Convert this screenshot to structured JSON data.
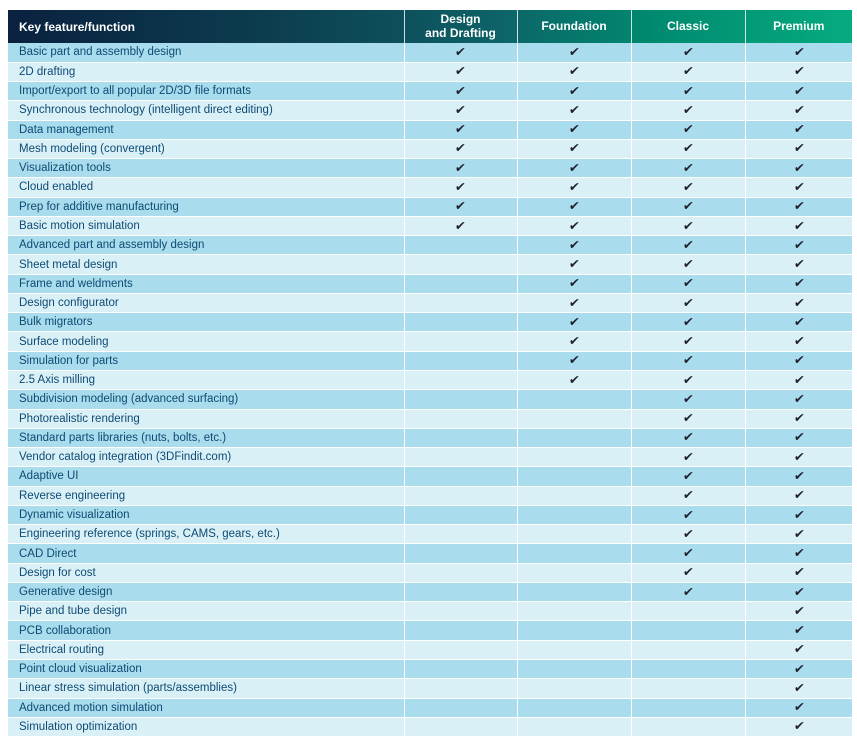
{
  "table": {
    "header": {
      "feature_label": "Key feature/function",
      "plans": [
        "Design\nand Drafting",
        "Foundation",
        "Classic",
        "Premium"
      ]
    },
    "check_glyph": "✔",
    "colors": {
      "header_gradient_left": "#0a2140",
      "header_gradient_mid": "#0d4f5b",
      "header_gradient_right": "#06ab80",
      "row_stripe_dark": "#a9dcec",
      "row_stripe_light": "#d9f0f7",
      "row_text": "#0e4a74",
      "header_text": "#ffffff",
      "check": "#20202e"
    },
    "rows": [
      {
        "feature": "Basic part and assembly design",
        "checks": [
          true,
          true,
          true,
          true
        ]
      },
      {
        "feature": "2D drafting",
        "checks": [
          true,
          true,
          true,
          true
        ]
      },
      {
        "feature": "Import/export to all popular 2D/3D  file formats",
        "checks": [
          true,
          true,
          true,
          true
        ]
      },
      {
        "feature": "Synchronous technology (intelligent direct editing)",
        "checks": [
          true,
          true,
          true,
          true
        ]
      },
      {
        "feature": "Data management",
        "checks": [
          true,
          true,
          true,
          true
        ]
      },
      {
        "feature": "Mesh modeling (convergent)",
        "checks": [
          true,
          true,
          true,
          true
        ]
      },
      {
        "feature": "Visualization tools",
        "checks": [
          true,
          true,
          true,
          true
        ]
      },
      {
        "feature": "Cloud enabled",
        "checks": [
          true,
          true,
          true,
          true
        ]
      },
      {
        "feature": "Prep for additive manufacturing",
        "checks": [
          true,
          true,
          true,
          true
        ]
      },
      {
        "feature": "Basic motion simulation",
        "checks": [
          true,
          true,
          true,
          true
        ]
      },
      {
        "feature": "Advanced part and assembly design",
        "checks": [
          false,
          true,
          true,
          true
        ]
      },
      {
        "feature": "Sheet metal design",
        "checks": [
          false,
          true,
          true,
          true
        ]
      },
      {
        "feature": "Frame and weldments",
        "checks": [
          false,
          true,
          true,
          true
        ]
      },
      {
        "feature": "Design configurator",
        "checks": [
          false,
          true,
          true,
          true
        ]
      },
      {
        "feature": "Bulk migrators",
        "checks": [
          false,
          true,
          true,
          true
        ]
      },
      {
        "feature": "Surface modeling",
        "checks": [
          false,
          true,
          true,
          true
        ]
      },
      {
        "feature": "Simulation for parts",
        "checks": [
          false,
          true,
          true,
          true
        ]
      },
      {
        "feature": "2.5 Axis milling",
        "checks": [
          false,
          true,
          true,
          true
        ]
      },
      {
        "feature": "Subdivision modeling (advanced surfacing)",
        "checks": [
          false,
          false,
          true,
          true
        ]
      },
      {
        "feature": "Photorealistic rendering",
        "checks": [
          false,
          false,
          true,
          true
        ]
      },
      {
        "feature": "Standard parts libraries (nuts, bolts, etc.)",
        "checks": [
          false,
          false,
          true,
          true
        ]
      },
      {
        "feature": "Vendor catalog integration (3DFindit.com)",
        "checks": [
          false,
          false,
          true,
          true
        ]
      },
      {
        "feature": "Adaptive UI",
        "checks": [
          false,
          false,
          true,
          true
        ]
      },
      {
        "feature": "Reverse engineering",
        "checks": [
          false,
          false,
          true,
          true
        ]
      },
      {
        "feature": "Dynamic visualization",
        "checks": [
          false,
          false,
          true,
          true
        ]
      },
      {
        "feature": "Engineering reference (springs, CAMS, gears, etc.)",
        "checks": [
          false,
          false,
          true,
          true
        ]
      },
      {
        "feature": "CAD Direct",
        "checks": [
          false,
          false,
          true,
          true
        ]
      },
      {
        "feature": "Design for cost",
        "checks": [
          false,
          false,
          true,
          true
        ]
      },
      {
        "feature": "Generative design",
        "checks": [
          false,
          false,
          true,
          true
        ]
      },
      {
        "feature": "Pipe and tube design",
        "checks": [
          false,
          false,
          false,
          true
        ]
      },
      {
        "feature": "PCB collaboration",
        "checks": [
          false,
          false,
          false,
          true
        ]
      },
      {
        "feature": "Electrical routing",
        "checks": [
          false,
          false,
          false,
          true
        ]
      },
      {
        "feature": "Point cloud visualization",
        "checks": [
          false,
          false,
          false,
          true
        ]
      },
      {
        "feature": "Linear stress simulation (parts/assemblies)",
        "checks": [
          false,
          false,
          false,
          true
        ]
      },
      {
        "feature": "Advanced motion simulation",
        "checks": [
          false,
          false,
          false,
          true
        ]
      },
      {
        "feature": "Simulation optimization",
        "checks": [
          false,
          false,
          false,
          true
        ]
      }
    ]
  }
}
